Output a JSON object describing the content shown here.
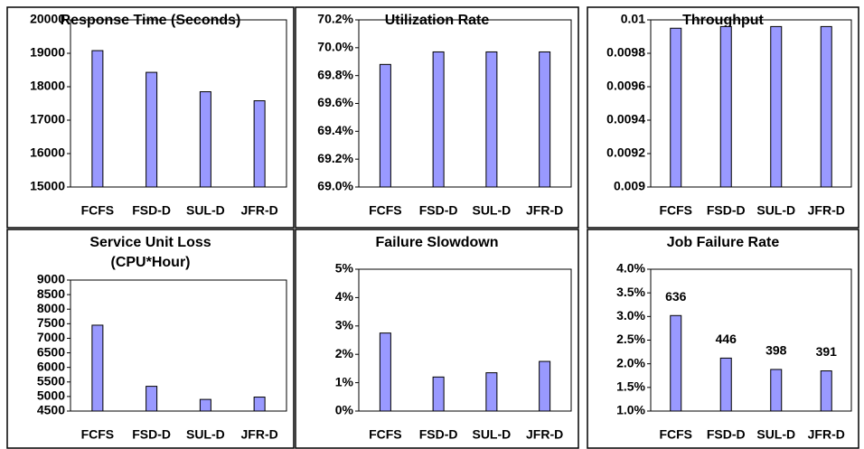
{
  "chart_data": [
    {
      "type": "bar",
      "title": "Response Time (Seconds)",
      "categories": [
        "FCFS",
        "FSD-D",
        "SUL-D",
        "JFR-D"
      ],
      "values": [
        19080,
        18430,
        17850,
        17580
      ],
      "color": "#9999ff",
      "ylim": [
        15000,
        20000
      ],
      "yticks": [
        15000,
        16000,
        17000,
        18000,
        19000,
        20000
      ]
    },
    {
      "type": "bar",
      "title": "Utilization Rate",
      "categories": [
        "FCFS",
        "FSD-D",
        "SUL-D",
        "JFR-D"
      ],
      "values": [
        69.88,
        69.97,
        69.97,
        69.97
      ],
      "color": "#9999ff",
      "ylim": [
        69.0,
        70.2
      ],
      "yticks": [
        {
          "value": 69.0,
          "label": "69.0%"
        },
        {
          "value": 69.2,
          "label": "69.2%"
        },
        {
          "value": 69.4,
          "label": "69.4%"
        },
        {
          "value": 69.6,
          "label": "69.6%"
        },
        {
          "value": 69.8,
          "label": "69.8%"
        },
        {
          "value": 70.0,
          "label": "70.0%"
        },
        {
          "value": 70.2,
          "label": "70.2%"
        }
      ]
    },
    {
      "type": "bar",
      "title": "Throughput",
      "categories": [
        "FCFS",
        "FSD-D",
        "SUL-D",
        "JFR-D"
      ],
      "values": [
        0.00995,
        0.00996,
        0.00996,
        0.00996
      ],
      "color": "#9999ff",
      "ylim": [
        0.009,
        0.01
      ],
      "yticks": [
        0.009,
        0.0092,
        0.0094,
        0.0096,
        0.0098,
        0.01
      ]
    },
    {
      "type": "bar",
      "title": "Service Unit Loss",
      "subtitle": "(CPU*Hour)",
      "categories": [
        "FCFS",
        "FSD-D",
        "SUL-D",
        "JFR-D"
      ],
      "values": [
        7450,
        5350,
        4900,
        4980
      ],
      "color": "#9999ff",
      "ylim": [
        4500,
        9000
      ],
      "yticks": [
        4500,
        5000,
        5500,
        6000,
        6500,
        7000,
        7500,
        8000,
        8500,
        9000
      ]
    },
    {
      "type": "bar",
      "title": "Failure Slowdown",
      "categories": [
        "FCFS",
        "FSD-D",
        "SUL-D",
        "JFR-D"
      ],
      "values": [
        2.75,
        1.2,
        1.35,
        1.75
      ],
      "color": "#9999ff",
      "ylim": [
        0,
        5
      ],
      "yticks": [
        {
          "value": 0,
          "label": "0%"
        },
        {
          "value": 1,
          "label": "1%"
        },
        {
          "value": 2,
          "label": "2%"
        },
        {
          "value": 3,
          "label": "3%"
        },
        {
          "value": 4,
          "label": "4%"
        },
        {
          "value": 5,
          "label": "5%"
        }
      ]
    },
    {
      "type": "bar",
      "title": "Job Failure Rate",
      "categories": [
        "FCFS",
        "FSD-D",
        "SUL-D",
        "JFR-D"
      ],
      "values": [
        3.02,
        2.12,
        1.88,
        1.85
      ],
      "annotations": [
        "636",
        "446",
        "398",
        "391"
      ],
      "color": "#9999ff",
      "ylim": [
        1.0,
        4.0
      ],
      "yticks": [
        {
          "value": 1.0,
          "label": "1.0%"
        },
        {
          "value": 1.5,
          "label": "1.5%"
        },
        {
          "value": 2.0,
          "label": "2.0%"
        },
        {
          "value": 2.5,
          "label": "2.5%"
        },
        {
          "value": 3.0,
          "label": "3.0%"
        },
        {
          "value": 3.5,
          "label": "3.5%"
        },
        {
          "value": 4.0,
          "label": "4.0%"
        }
      ]
    }
  ]
}
